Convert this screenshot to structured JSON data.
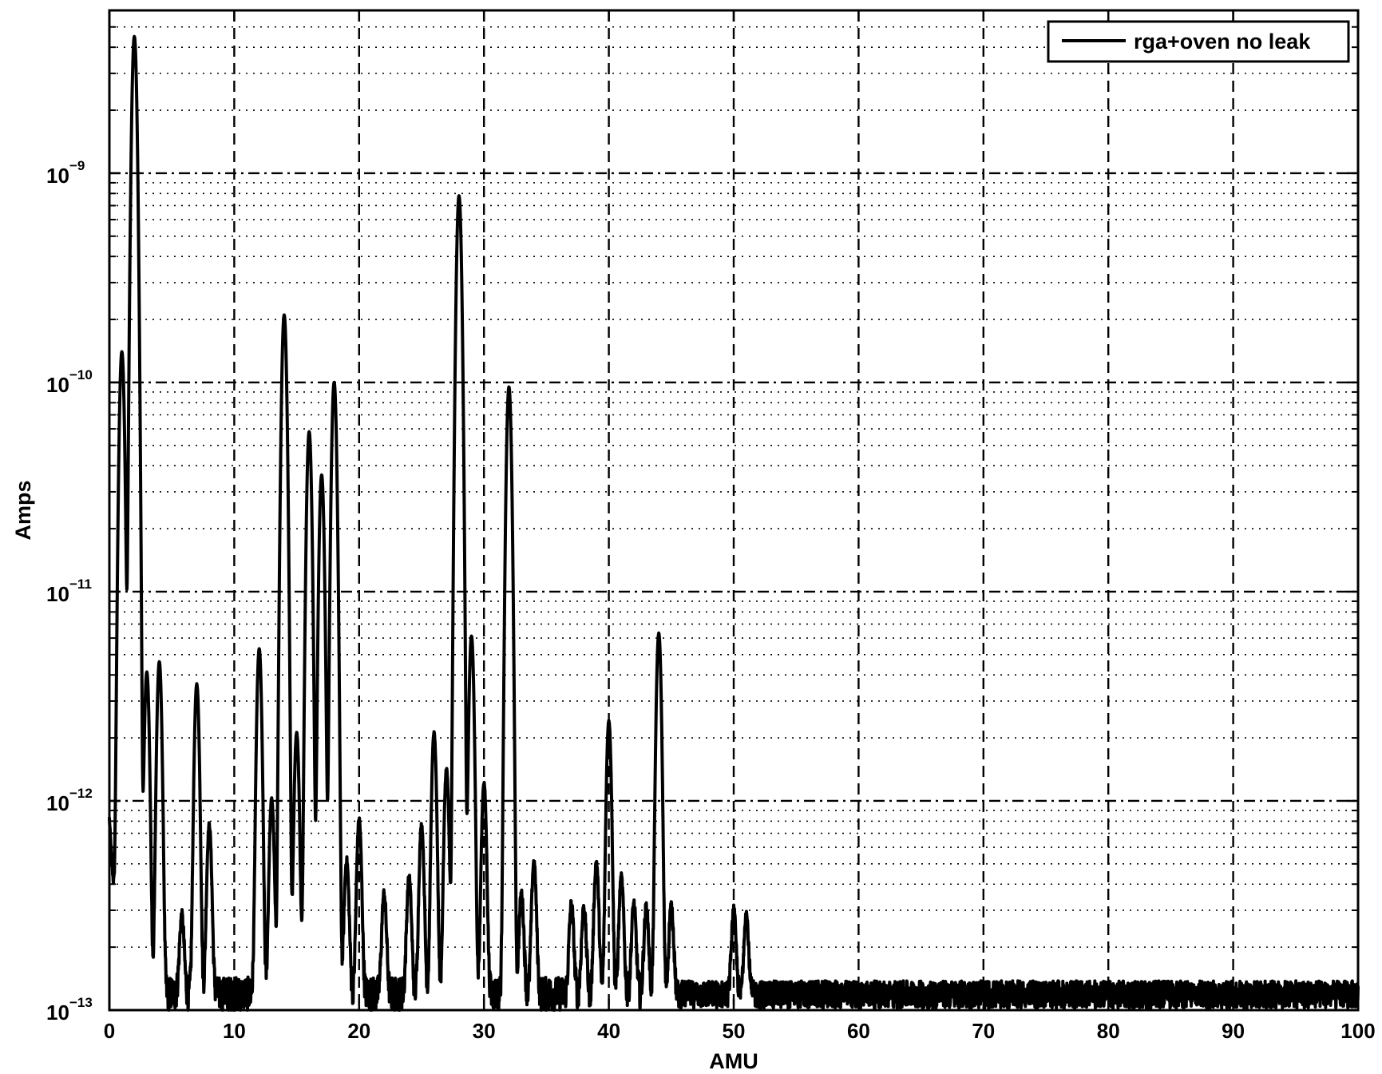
{
  "chart_data": {
    "type": "line",
    "title": "",
    "xlabel": "AMU",
    "ylabel": "Amps",
    "xlim": [
      0,
      100
    ],
    "ylim": [
      1e-13,
      6e-09
    ],
    "yscale": "log",
    "grid": true,
    "legend_position": "top-right",
    "xticks": [
      0,
      10,
      20,
      30,
      40,
      50,
      60,
      70,
      80,
      90,
      100
    ],
    "xtick_labels": [
      "0",
      "10",
      "20",
      "30",
      "40",
      "50",
      "60",
      "70",
      "80",
      "90",
      "100"
    ],
    "yticks": [
      1e-13,
      1e-12,
      1e-11,
      1e-10,
      1e-09
    ],
    "ytick_labels": [
      {
        "base": "10",
        "exp": "−13"
      },
      {
        "base": "10",
        "exp": "−12"
      },
      {
        "base": "10",
        "exp": "−11"
      },
      {
        "base": "10",
        "exp": "−10"
      },
      {
        "base": "10",
        "exp": "−9"
      }
    ],
    "series": [
      {
        "name": "rga+oven no leak",
        "color": "#000000",
        "baseline": 1.2e-13,
        "start_value": 7e-13,
        "peaks": [
          {
            "x": 1.0,
            "y": 1.4e-10
          },
          {
            "x": 2.0,
            "y": 4.5e-09
          },
          {
            "x": 3.0,
            "y": 4e-12
          },
          {
            "x": 4.0,
            "y": 4.5e-12
          },
          {
            "x": 5.8,
            "y": 1.6e-13
          },
          {
            "x": 7.0,
            "y": 3.5e-12
          },
          {
            "x": 8.0,
            "y": 6.5e-13
          },
          {
            "x": 12.0,
            "y": 5.2e-12
          },
          {
            "x": 13.0,
            "y": 9e-13
          },
          {
            "x": 14.0,
            "y": 2.1e-10
          },
          {
            "x": 15.0,
            "y": 2e-12
          },
          {
            "x": 16.0,
            "y": 5.8e-11
          },
          {
            "x": 17.0,
            "y": 3.6e-11
          },
          {
            "x": 18.0,
            "y": 1e-10
          },
          {
            "x": 19.0,
            "y": 4e-13
          },
          {
            "x": 20.0,
            "y": 7e-13
          },
          {
            "x": 22.0,
            "y": 2.4e-13
          },
          {
            "x": 24.0,
            "y": 3.1e-13
          },
          {
            "x": 25.0,
            "y": 6.5e-13
          },
          {
            "x": 26.0,
            "y": 2e-12
          },
          {
            "x": 27.0,
            "y": 1.3e-12
          },
          {
            "x": 28.0,
            "y": 7.8e-10
          },
          {
            "x": 29.0,
            "y": 6e-12
          },
          {
            "x": 30.0,
            "y": 1.1e-12
          },
          {
            "x": 32.0,
            "y": 9.5e-11
          },
          {
            "x": 33.0,
            "y": 2.4e-13
          },
          {
            "x": 34.0,
            "y": 3.9e-13
          },
          {
            "x": 37.0,
            "y": 2e-13
          },
          {
            "x": 38.0,
            "y": 1.9e-13
          },
          {
            "x": 39.0,
            "y": 3.9e-13
          },
          {
            "x": 40.0,
            "y": 2.3e-12
          },
          {
            "x": 41.0,
            "y": 3.1e-13
          },
          {
            "x": 42.0,
            "y": 2e-13
          },
          {
            "x": 43.0,
            "y": 1.9e-13
          },
          {
            "x": 44.0,
            "y": 6.2e-12
          },
          {
            "x": 45.0,
            "y": 2e-13
          },
          {
            "x": 50.0,
            "y": 1.8e-13
          },
          {
            "x": 51.0,
            "y": 1.7e-13
          }
        ]
      }
    ]
  }
}
